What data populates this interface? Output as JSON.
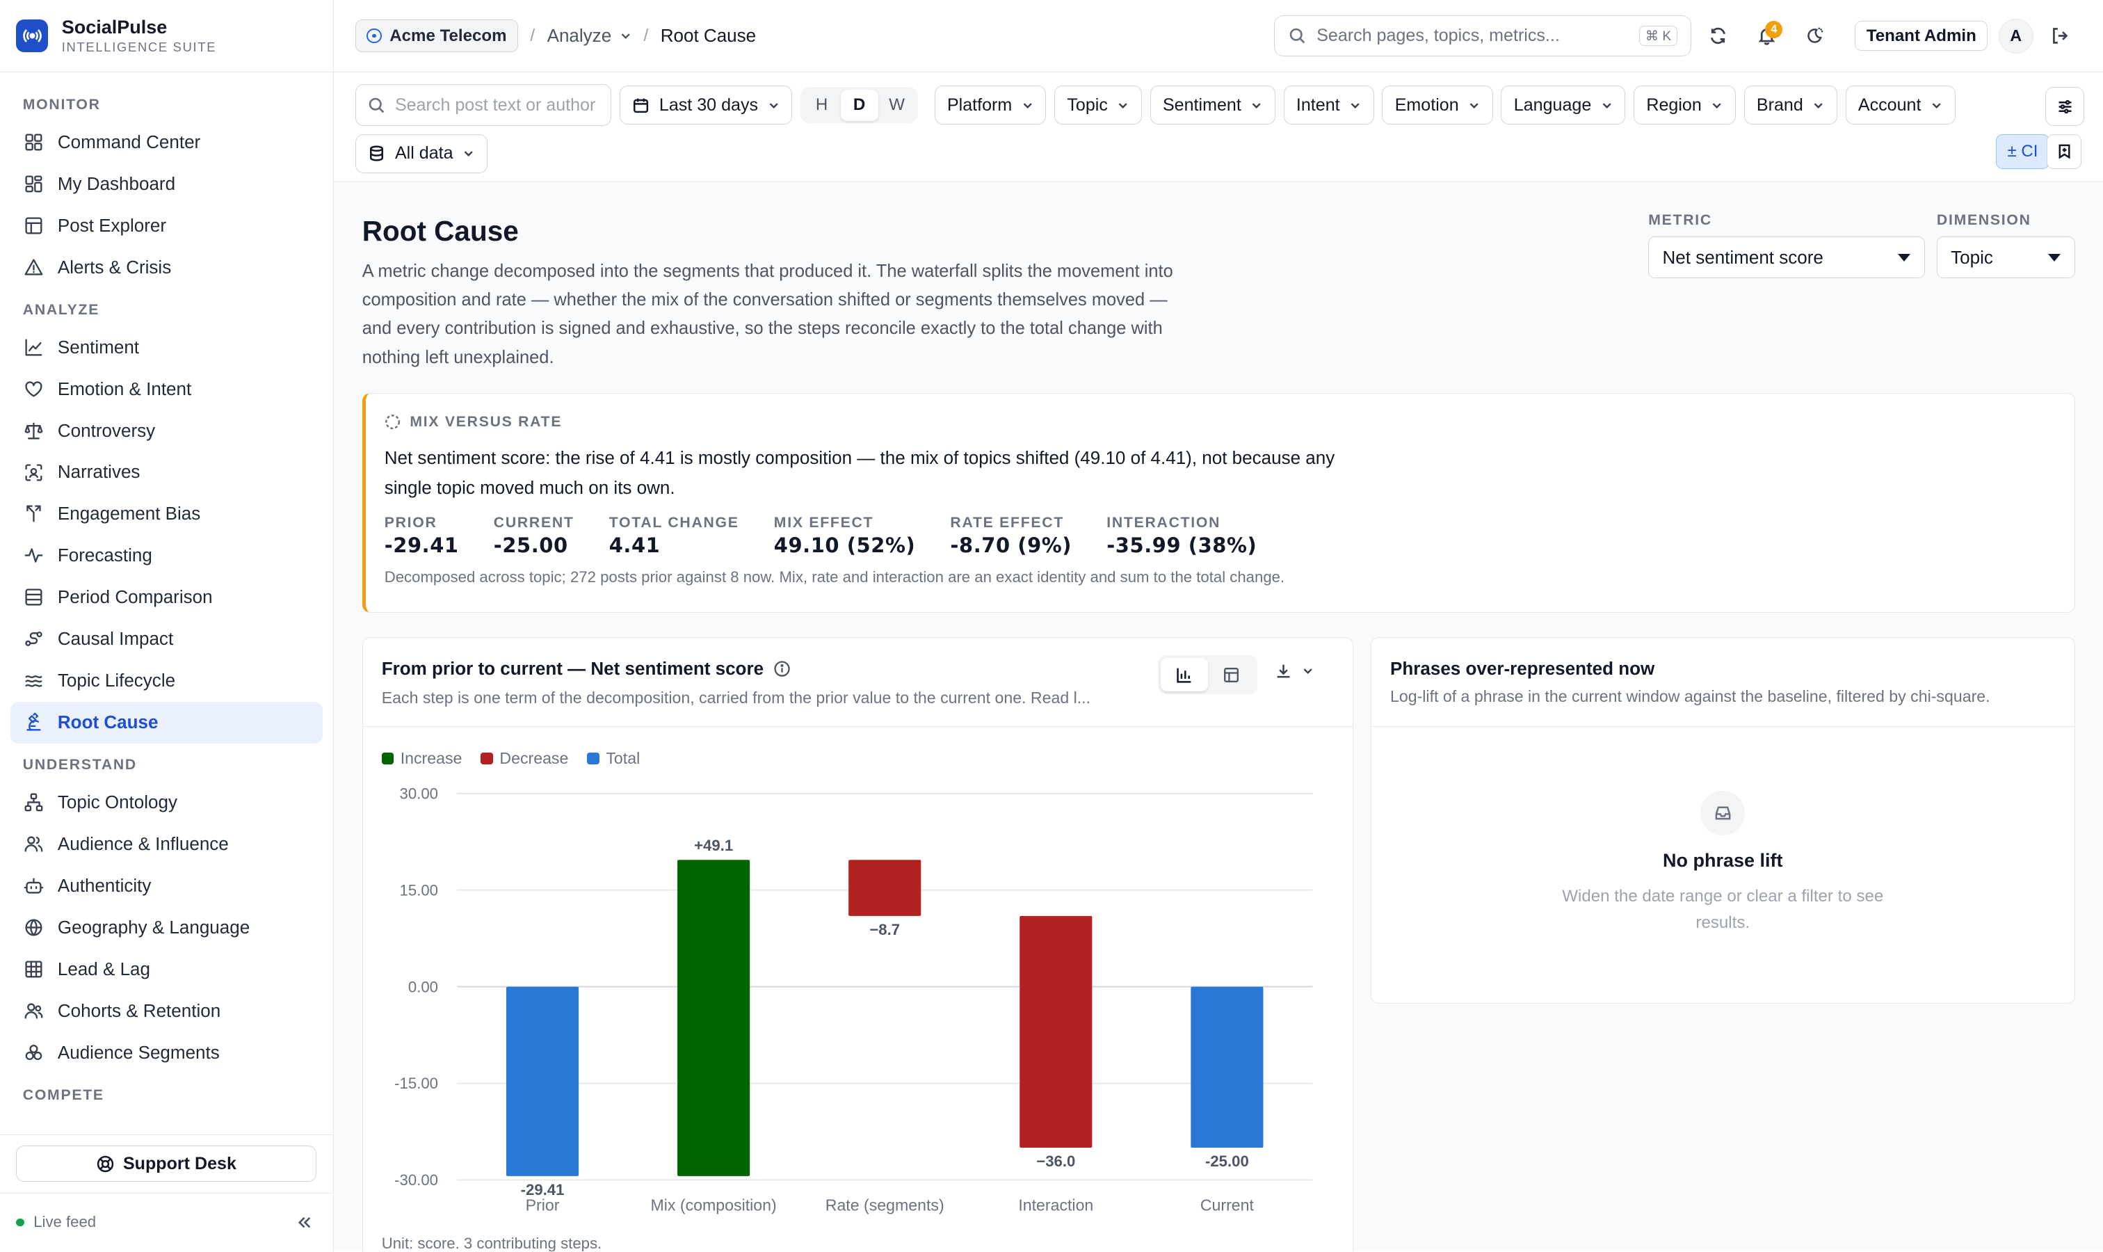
{
  "app": {
    "name": "SocialPulse",
    "subtitle": "INTELLIGENCE SUITE"
  },
  "sidebar": {
    "sections": [
      {
        "title": "MONITOR",
        "items": [
          {
            "label": "Command Center",
            "icon": "grid-icon"
          },
          {
            "label": "My Dashboard",
            "icon": "dashboard-icon"
          },
          {
            "label": "Post Explorer",
            "icon": "table-icon"
          },
          {
            "label": "Alerts & Crisis",
            "icon": "warning-icon"
          }
        ]
      },
      {
        "title": "ANALYZE",
        "items": [
          {
            "label": "Sentiment",
            "icon": "line-chart-icon"
          },
          {
            "label": "Emotion & Intent",
            "icon": "heart-icon"
          },
          {
            "label": "Controversy",
            "icon": "scale-icon"
          },
          {
            "label": "Narratives",
            "icon": "scan-icon"
          },
          {
            "label": "Engagement Bias",
            "icon": "split-icon"
          },
          {
            "label": "Forecasting",
            "icon": "pulse-icon"
          },
          {
            "label": "Period Comparison",
            "icon": "rows-icon"
          },
          {
            "label": "Causal Impact",
            "icon": "causal-icon"
          },
          {
            "label": "Topic Lifecycle",
            "icon": "waves-icon"
          },
          {
            "label": "Root Cause",
            "icon": "microscope-icon",
            "active": true
          }
        ]
      },
      {
        "title": "UNDERSTAND",
        "items": [
          {
            "label": "Topic Ontology",
            "icon": "tree-icon"
          },
          {
            "label": "Audience & Influence",
            "icon": "users-icon"
          },
          {
            "label": "Authenticity",
            "icon": "bot-icon"
          },
          {
            "label": "Geography & Language",
            "icon": "globe-icon"
          },
          {
            "label": "Lead & Lag",
            "icon": "grid-table-icon"
          },
          {
            "label": "Cohorts & Retention",
            "icon": "user-group-icon"
          },
          {
            "label": "Audience Segments",
            "icon": "segments-icon"
          }
        ]
      },
      {
        "title": "COMPETE",
        "items": []
      }
    ],
    "support_label": "Support Desk",
    "live_label": "Live feed"
  },
  "topbar": {
    "tenant": "Acme Telecom",
    "crumb_parent": "Analyze",
    "crumb_current": "Root Cause",
    "search_placeholder": "Search pages, topics, metrics...",
    "search_shortcut": "⌘ K",
    "notif_count": "4",
    "role": "Tenant Admin",
    "avatar": "A"
  },
  "filters": {
    "search_placeholder": "Search post text or author",
    "date_range": "Last 30 days",
    "granularity": [
      "H",
      "D",
      "W"
    ],
    "granularity_selected": "D",
    "dropdowns": [
      "Platform",
      "Topic",
      "Sentiment",
      "Intent",
      "Emotion",
      "Language",
      "Region",
      "Brand",
      "Account"
    ],
    "data_scope": "All data",
    "ci_label": "± CI"
  },
  "page": {
    "title": "Root Cause",
    "description": "A metric change decomposed into the segments that produced it. The waterfall splits the movement into composition and rate — whether the mix of the conversation shifted or segments themselves moved — and every contribution is signed and exhaustive, so the steps reconcile exactly to the total change with nothing left unexplained.",
    "metric_label": "METRIC",
    "metric_value": "Net sentiment score",
    "dimension_label": "DIMENSION",
    "dimension_value": "Topic"
  },
  "mix": {
    "heading": "MIX VERSUS RATE",
    "text": "Net sentiment score: the rise of 4.41 is mostly composition — the mix of topics shifted (49.10 of 4.41), not because any single topic moved much on its own.",
    "kpis": [
      {
        "label": "PRIOR",
        "value": "-29.41"
      },
      {
        "label": "CURRENT",
        "value": "-25.00"
      },
      {
        "label": "TOTAL CHANGE",
        "value": "4.41"
      },
      {
        "label": "MIX EFFECT",
        "value": "49.10 (52%)"
      },
      {
        "label": "RATE EFFECT",
        "value": "-8.70 (9%)"
      },
      {
        "label": "INTERACTION",
        "value": "-35.99 (38%)"
      }
    ],
    "footnote": "Decomposed across topic; 272 posts prior against 8 now. Mix, rate and interaction are an exact identity and sum to the total change."
  },
  "waterfall": {
    "title": "From prior to current — Net sentiment score",
    "subtitle": "Each step is one term of the decomposition, carried from the prior value to the current one. Read l...",
    "unit_note": "Unit: score. 3 contributing steps."
  },
  "phrases": {
    "title": "Phrases over-represented now",
    "subtitle": "Log-lift of a phrase in the current window against the baseline, filtered by chi-square.",
    "empty_title": "No phrase lift",
    "empty_desc": "Widen the date range or clear a filter to see results."
  },
  "chart_data": {
    "type": "bar",
    "subtype": "waterfall",
    "title": "From prior to current — Net sentiment score",
    "categories": [
      "Prior",
      "Mix (composition)",
      "Rate (segments)",
      "Interaction",
      "Current"
    ],
    "steps": [
      {
        "label": "Prior",
        "kind": "total",
        "value": -29.41,
        "start": 0,
        "end": -29.41,
        "data_label": "-29.41"
      },
      {
        "label": "Mix (composition)",
        "kind": "increase",
        "value": 49.1,
        "start": -29.41,
        "end": 19.69,
        "data_label": "+49.1"
      },
      {
        "label": "Rate (segments)",
        "kind": "decrease",
        "value": -8.7,
        "start": 19.69,
        "end": 10.99,
        "data_label": "−8.7"
      },
      {
        "label": "Interaction",
        "kind": "decrease",
        "value": -35.99,
        "start": 10.99,
        "end": -25.0,
        "data_label": "−36.0"
      },
      {
        "label": "Current",
        "kind": "total",
        "value": -25.0,
        "start": 0,
        "end": -25.0,
        "data_label": "-25.00"
      }
    ],
    "legend": [
      {
        "name": "Increase",
        "color": "#006400"
      },
      {
        "name": "Decrease",
        "color": "#b22222"
      },
      {
        "name": "Total",
        "color": "#2a78d6"
      }
    ],
    "ylim": [
      -30,
      30
    ],
    "yticks": [
      "30.00",
      "15.00",
      "0.00",
      "-15.00",
      "-30.00"
    ],
    "ytick_values": [
      30,
      15,
      0,
      -15,
      -30
    ],
    "grid": true,
    "legend_position": "top-left"
  }
}
